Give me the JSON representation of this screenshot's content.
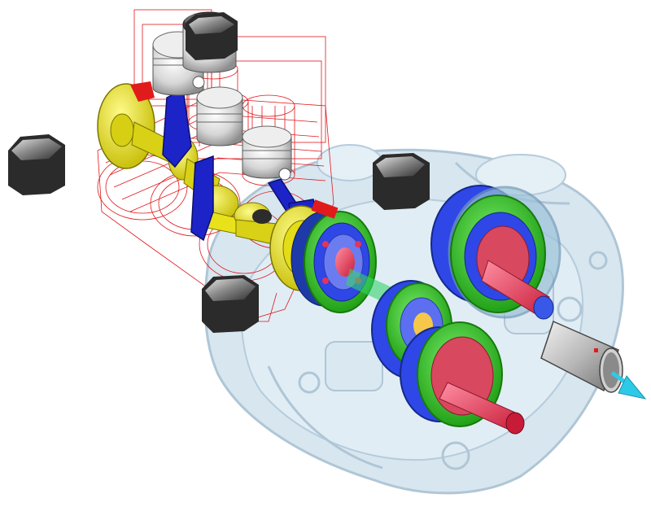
{
  "scene": {
    "background": "#ffffff",
    "colors": {
      "housing_fill": "#a9c9dd",
      "housing_stroke": "#6f98b6",
      "wireframe": "#e0161b",
      "crank_yellow": "#f0ea1a",
      "crank_red": "#e11b1b",
      "rod_blue": "#1c24c8",
      "piston_silver": "#d8d8d8",
      "gear_green": "#39d02a",
      "gear_blue": "#2e47e6",
      "shaft_red": "#e3345a",
      "output_shaft": "#bdbdbd",
      "arrow_cyan": "#2fc9e8",
      "camera_dark": "#2b2b2b"
    },
    "components": {
      "housing": "transparent-housing",
      "engine_block": "wireframe-engine-block",
      "crankshaft": "crankshaft",
      "pistons": [
        "piston",
        "piston",
        "piston",
        "piston"
      ],
      "planetary_gearsets": [
        "planetary-gearset",
        "planetary-gearset",
        "planetary-gearset",
        "planetary-gearset"
      ],
      "output": "output-shaft",
      "direction_arrow": "output-direction-arrow",
      "view_nodes": [
        "camera-node",
        "camera-node",
        "camera-node",
        "camera-node"
      ]
    }
  }
}
